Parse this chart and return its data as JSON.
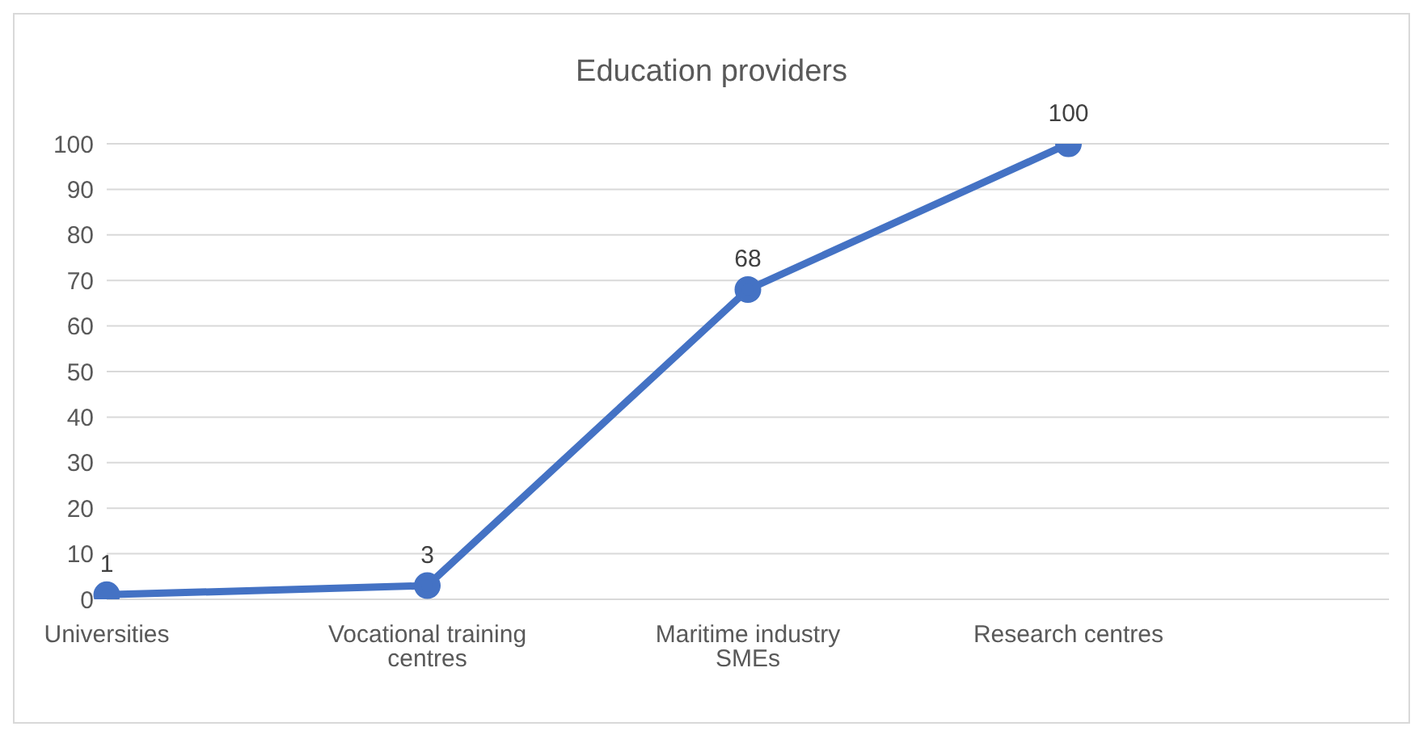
{
  "chart_data": {
    "type": "line",
    "title": "Education providers",
    "categories": [
      "Universities",
      "Vocational training centres",
      "Maritime industry SMEs",
      "Research centres",
      null
    ],
    "series": [
      {
        "color": "#4472c4",
        "values": [
          1,
          3,
          68,
          100,
          null
        ]
      }
    ],
    "ylim": [
      0,
      100
    ],
    "yticks": [
      0,
      10,
      20,
      30,
      40,
      50,
      60,
      70,
      80,
      90,
      100
    ],
    "grid": "y",
    "marker": "circle",
    "line_style": "solid",
    "data_labels": true
  }
}
